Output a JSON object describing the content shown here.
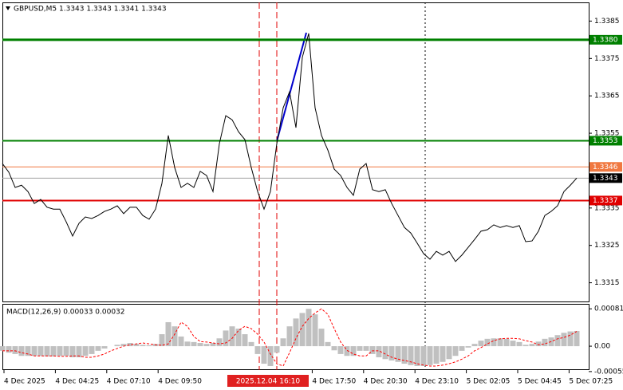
{
  "chart_data": [
    {
      "type": "line",
      "title": "GBPUSD,M5  1.3343 1.3343 1.3341 1.3343",
      "color": "#000000",
      "values": [
        1.33469,
        1.33446,
        1.33405,
        1.33411,
        1.33394,
        1.33362,
        1.33373,
        1.33352,
        1.33347,
        1.33347,
        1.33313,
        1.33275,
        1.33309,
        1.33326,
        1.33322,
        1.3333,
        1.33341,
        1.33347,
        1.33356,
        1.33335,
        1.33352,
        1.33352,
        1.3333,
        1.3332,
        1.33347,
        1.33416,
        1.33544,
        1.33458,
        1.33405,
        1.33416,
        1.33405,
        1.33448,
        1.33437,
        1.33394,
        1.33522,
        1.33597,
        1.33586,
        1.33554,
        1.33533,
        1.33458,
        1.33394,
        1.33347,
        1.33394,
        1.33522,
        1.33618,
        1.33661,
        1.33565,
        1.33753,
        1.33817,
        1.33618,
        1.33544,
        1.33505,
        1.33454,
        1.33437,
        1.33405,
        1.33384,
        1.33454,
        1.33469,
        1.33399,
        1.33394,
        1.33399,
        1.33362,
        1.3333,
        1.33298,
        1.33283,
        1.33256,
        1.33228,
        1.33213,
        1.33234,
        1.33224,
        1.33234,
        1.33207,
        1.33224,
        1.33245,
        1.33266,
        1.33288,
        1.33292,
        1.33305,
        1.33298,
        1.33303,
        1.33298,
        1.33303,
        1.3326,
        1.33262,
        1.33288,
        1.3333,
        1.33341,
        1.33356,
        1.33394,
        1.33411,
        1.3343
      ],
      "ylim": [
        1.331,
        1.339
      ],
      "yticks": [
        1.3385,
        1.3375,
        1.3365,
        1.3355,
        1.3335,
        1.3325,
        1.3315
      ],
      "levels": [
        {
          "value": 1.338,
          "label": "1.3380",
          "color": "#008000"
        },
        {
          "value": 1.3353,
          "label": "1.3353",
          "color": "#008000"
        },
        {
          "value": 1.3346,
          "label": "1.3346",
          "color": "#f07840"
        },
        {
          "value": 1.3337,
          "label": "1.3337",
          "color": "#e00000"
        }
      ],
      "last_price": {
        "value": 1.3343,
        "label": "1.3343",
        "color": "#a0a0a0"
      },
      "x_labels": [
        "4 Dec 2025",
        "4 Dec 04:25",
        "4 Dec 07:10",
        "4 Dec 09:50",
        null,
        null,
        "4 Dec 17:50",
        "4 Dec 20:30",
        "4 Dec 23:10",
        "5 Dec 02:05",
        "5 Dec 04:45",
        "5 Dec 07:25"
      ],
      "cursor_label": "2025.12.04 16:10"
    },
    {
      "type": "bar",
      "title": "MACD(12,26,9) 0.00033 0.00032",
      "series": [
        {
          "color": "#c0c0c0",
          "values": [
            -0.0001,
            -0.00014,
            -0.00017,
            -0.00021,
            -0.00021,
            -0.00021,
            -0.00021,
            -0.00022,
            -0.00022,
            -0.00021,
            -0.00021,
            -0.00024,
            -0.00024,
            -0.00021,
            -0.00017,
            -0.0001,
            -5e-05,
            0,
            3e-05,
            5e-05,
            7e-05,
            5e-05,
            3e-05,
            2e-05,
            5e-05,
            0.00026,
            0.00052,
            0.00043,
            0.00021,
            0.0001,
            9e-05,
            7e-05,
            5e-05,
            7e-05,
            0.00017,
            0.00034,
            0.00043,
            0.00038,
            0.00026,
            9e-05,
            -0.00017,
            -0.00038,
            -0.00043,
            -0.00014,
            0.00017,
            0.00043,
            0.0006,
            0.00072,
            0.00081,
            0.00069,
            0.00038,
            9e-05,
            -9e-05,
            -0.00017,
            -0.00021,
            -0.00021,
            -0.0001,
            -0.0001,
            -0.00017,
            -0.00024,
            -0.00028,
            -0.00031,
            -0.00034,
            -0.00038,
            -0.00041,
            -0.00043,
            -0.00043,
            -0.00041,
            -0.00038,
            -0.00034,
            -0.00028,
            -0.00021,
            -0.0001,
            -3e-05,
            5e-05,
            0.00012,
            0.00016,
            0.00017,
            0.00017,
            0.00016,
            0.00012,
            9e-05,
            3e-05,
            5e-05,
            0.0001,
            0.00016,
            0.00019,
            0.00024,
            0.00029,
            0.00032,
            0.00033
          ]
        },
        {
          "type": "line",
          "color": "#ff0000",
          "values": [
            -0.0001,
            -0.0001,
            -0.0001,
            -0.00014,
            -0.00017,
            -0.00021,
            -0.00021,
            -0.00021,
            -0.00021,
            -0.00022,
            -0.00022,
            -0.00021,
            -0.00021,
            -0.00024,
            -0.00024,
            -0.00021,
            -0.00017,
            -0.0001,
            -5e-05,
            0,
            3e-05,
            5e-05,
            7e-05,
            5e-05,
            3e-05,
            2e-05,
            5e-05,
            0.00026,
            0.00052,
            0.00043,
            0.00021,
            0.0001,
            9e-05,
            7e-05,
            5e-05,
            7e-05,
            0.00017,
            0.00034,
            0.00043,
            0.00038,
            0.00026,
            9e-05,
            -0.00017,
            -0.00038,
            -0.00043,
            -0.00014,
            0.00017,
            0.00043,
            0.0006,
            0.00072,
            0.00081,
            0.00069,
            0.00038,
            9e-05,
            -9e-05,
            -0.00017,
            -0.00021,
            -0.00021,
            -0.0001,
            -0.0001,
            -0.00017,
            -0.00024,
            -0.00028,
            -0.00031,
            -0.00034,
            -0.00038,
            -0.00041,
            -0.00043,
            -0.00043,
            -0.00041,
            -0.00038,
            -0.00034,
            -0.00028,
            -0.00021,
            -0.0001,
            -3e-05,
            5e-05,
            0.00012,
            0.00016,
            0.00017,
            0.00017,
            0.00016,
            0.00012,
            9e-05,
            3e-05,
            5e-05,
            0.0001,
            0.00016,
            0.00019,
            0.00024,
            0.00032
          ]
        }
      ],
      "ylim": [
        -0.0005,
        0.0009
      ],
      "yticks": [
        0.00081,
        {
          "value": 0,
          "label": "0.00"
        },
        -0.00055
      ]
    }
  ]
}
